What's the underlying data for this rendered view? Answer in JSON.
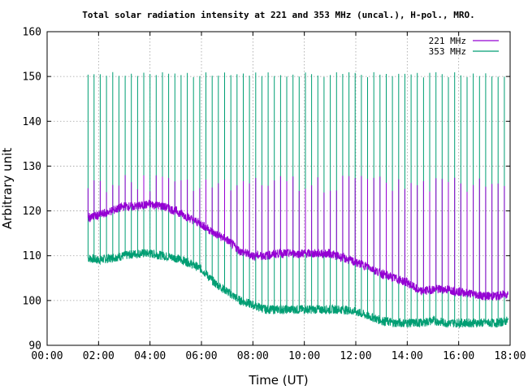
{
  "chart_data": {
    "type": "line",
    "title": "Total solar radiation intensity at 221 and 353 MHz (uncal.), H-pol., MRO.",
    "xlabel": "Time (UT)",
    "ylabel": "Arbitrary unit",
    "xlim": [
      "00:00",
      "18:00"
    ],
    "ylim": [
      90,
      160
    ],
    "x_ticks": [
      "00:00",
      "02:00",
      "04:00",
      "06:00",
      "08:00",
      "10:00",
      "12:00",
      "14:00",
      "16:00",
      "18:00"
    ],
    "y_ticks": [
      90,
      100,
      110,
      120,
      130,
      140,
      150,
      160
    ],
    "grid": true,
    "legend_position": "top-right",
    "series": [
      {
        "name": "221 MHz",
        "color": "#9400d3",
        "x": [
          "01:35",
          "02:00",
          "02:30",
          "03:00",
          "03:30",
          "04:00",
          "04:30",
          "05:00",
          "05:30",
          "06:00",
          "06:30",
          "07:00",
          "07:30",
          "08:00",
          "08:30",
          "09:00",
          "09:30",
          "10:00",
          "10:30",
          "11:00",
          "11:30",
          "12:00",
          "12:30",
          "13:00",
          "13:30",
          "14:00",
          "14:30",
          "15:00",
          "15:30",
          "16:00",
          "16:30",
          "17:00",
          "17:30",
          "17:55"
        ],
        "y": [
          118.5,
          119,
          120,
          121,
          121,
          121.5,
          121,
          120,
          118.5,
          117,
          115,
          113.5,
          111,
          110,
          110,
          110.5,
          110.5,
          110.5,
          110.5,
          110.5,
          109.5,
          108.5,
          107.5,
          106,
          105,
          104,
          102,
          102.5,
          102.5,
          102,
          101.5,
          101,
          101,
          101.5
        ],
        "calibration_peak": 128
      },
      {
        "name": "353 MHz",
        "color": "#009e73",
        "x": [
          "01:35",
          "02:00",
          "02:30",
          "03:00",
          "03:30",
          "04:00",
          "04:30",
          "05:00",
          "05:30",
          "06:00",
          "06:30",
          "07:00",
          "07:30",
          "08:00",
          "08:30",
          "09:00",
          "09:30",
          "10:00",
          "10:30",
          "11:00",
          "11:30",
          "12:00",
          "12:30",
          "13:00",
          "13:30",
          "14:00",
          "14:30",
          "15:00",
          "15:30",
          "16:00",
          "16:30",
          "17:00",
          "17:30",
          "17:55"
        ],
        "y": [
          109.5,
          109,
          109.5,
          110,
          110.5,
          110.5,
          110,
          109.5,
          108.5,
          107,
          104,
          102,
          100,
          99,
          98,
          98,
          98,
          98,
          98,
          98,
          98,
          97.5,
          96.5,
          95.5,
          95,
          95,
          95,
          95.5,
          95,
          95,
          95,
          95,
          95,
          95.5
        ],
        "calibration_peak": 151
      }
    ]
  }
}
